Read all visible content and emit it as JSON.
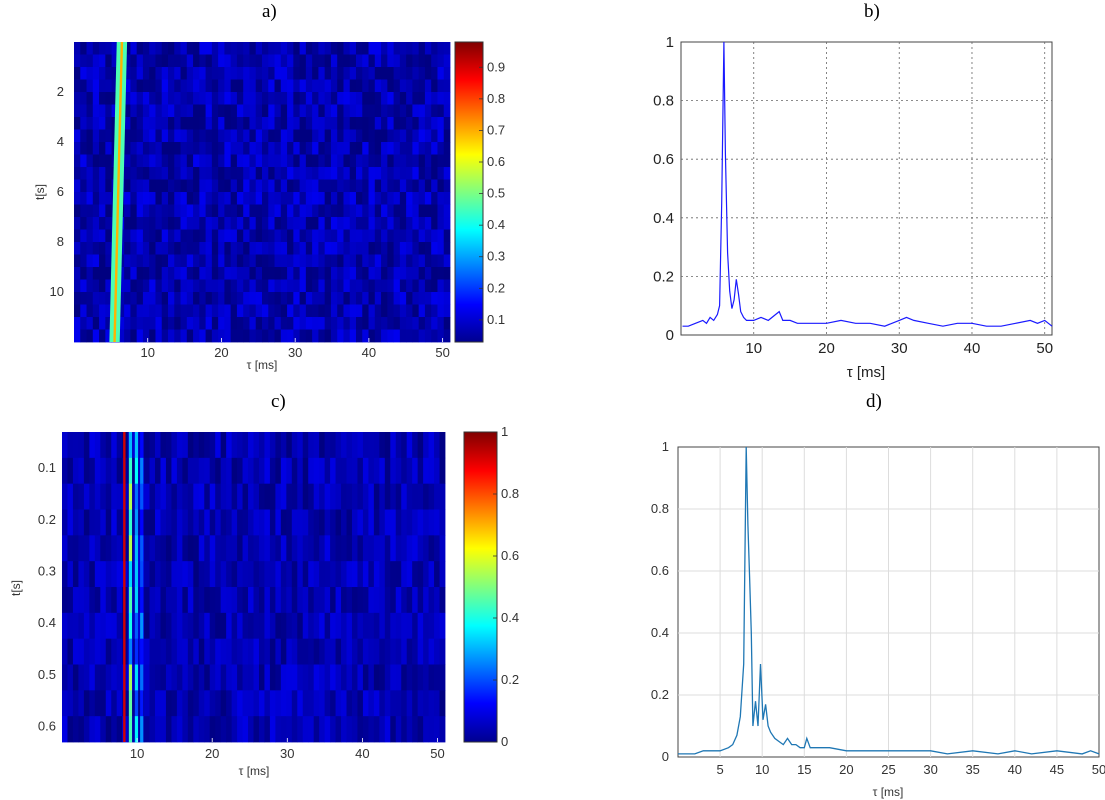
{
  "panels": {
    "a": {
      "label": "a)"
    },
    "b": {
      "label": "b)"
    },
    "c": {
      "label": "c)"
    },
    "d": {
      "label": "d)"
    }
  },
  "chart_data": [
    {
      "type": "heatmap",
      "panel": "a",
      "xlabel": "τ [ms]",
      "ylabel": "t[s]",
      "xlim": [
        0,
        51
      ],
      "ylim": [
        0,
        12
      ],
      "y_reversed": true,
      "x_ticks": [
        10,
        20,
        30,
        40,
        50
      ],
      "y_ticks": [
        2,
        4,
        6,
        8,
        10
      ],
      "colorbar_ticks": [
        0.1,
        0.2,
        0.3,
        0.4,
        0.5,
        0.6,
        0.7,
        0.8,
        0.9
      ],
      "colorbar_range": [
        0.03,
        0.98
      ],
      "colormap": "jet",
      "peak_tau_ms": {
        "at_t0": 6.5,
        "at_tmax": 5.5
      },
      "background_level": 0.05
    },
    {
      "type": "line",
      "panel": "b",
      "xlabel": "τ [ms]",
      "ylabel": "",
      "xlim": [
        0,
        51
      ],
      "ylim": [
        0,
        1
      ],
      "x_ticks": [
        10,
        20,
        30,
        40,
        50
      ],
      "y_ticks": [
        0,
        0.2,
        0.4,
        0.6,
        0.8,
        1
      ],
      "grid": "dotted",
      "color": "#1a1aff",
      "x": [
        0.2,
        1,
        2,
        3,
        3.5,
        4,
        4.5,
        5,
        5.3,
        5.6,
        5.9,
        6.1,
        6.4,
        6.7,
        7,
        7.3,
        7.6,
        7.9,
        8.2,
        8.6,
        9,
        10,
        11,
        12,
        13,
        13.5,
        14,
        15,
        16,
        18,
        20,
        22,
        24,
        26,
        28,
        30,
        31,
        32,
        34,
        36,
        38,
        40,
        42,
        44,
        46,
        48,
        49,
        50,
        51
      ],
      "y": [
        0.03,
        0.03,
        0.04,
        0.05,
        0.04,
        0.06,
        0.05,
        0.07,
        0.1,
        0.45,
        1.0,
        0.62,
        0.28,
        0.15,
        0.09,
        0.12,
        0.19,
        0.14,
        0.08,
        0.06,
        0.05,
        0.05,
        0.06,
        0.05,
        0.07,
        0.08,
        0.05,
        0.05,
        0.04,
        0.04,
        0.04,
        0.05,
        0.04,
        0.04,
        0.03,
        0.05,
        0.06,
        0.05,
        0.04,
        0.03,
        0.04,
        0.04,
        0.03,
        0.03,
        0.04,
        0.05,
        0.04,
        0.05,
        0.03
      ]
    },
    {
      "type": "heatmap",
      "panel": "c",
      "xlabel": "τ [ms]",
      "ylabel": "t[s]",
      "xlim": [
        0,
        51
      ],
      "ylim": [
        0.03,
        0.63
      ],
      "y_reversed": true,
      "x_ticks": [
        10,
        20,
        30,
        40,
        50
      ],
      "y_ticks": [
        0.1,
        0.2,
        0.3,
        0.4,
        0.5,
        0.6
      ],
      "colorbar_ticks": [
        0,
        0.2,
        0.4,
        0.6,
        0.8,
        1
      ],
      "colorbar_range": [
        0,
        1
      ],
      "colormap": "jet",
      "peak_tau_ms": 8.3,
      "background_level": 0.05
    },
    {
      "type": "line",
      "panel": "d",
      "xlabel": "τ [ms]",
      "ylabel": "",
      "xlim": [
        0,
        50
      ],
      "ylim": [
        0,
        1
      ],
      "x_ticks": [
        5,
        10,
        15,
        20,
        25,
        30,
        35,
        40,
        45,
        50
      ],
      "y_ticks": [
        0,
        0.2,
        0.4,
        0.6,
        0.8,
        1
      ],
      "grid": "solid",
      "color": "#1f77b4",
      "x": [
        0,
        1,
        2,
        3,
        4,
        5,
        6,
        6.5,
        7,
        7.4,
        7.8,
        8.1,
        8.3,
        8.5,
        8.7,
        8.9,
        9.2,
        9.5,
        9.8,
        10.1,
        10.4,
        10.7,
        11,
        11.5,
        12,
        12.5,
        13,
        13.5,
        14,
        14.5,
        15,
        15.3,
        15.7,
        16.5,
        18,
        20,
        22,
        25,
        28,
        30,
        32,
        35,
        38,
        40,
        42,
        45,
        48,
        49,
        50
      ],
      "y": [
        0.01,
        0.01,
        0.01,
        0.02,
        0.02,
        0.02,
        0.03,
        0.04,
        0.07,
        0.13,
        0.3,
        1.0,
        0.75,
        0.58,
        0.4,
        0.1,
        0.18,
        0.1,
        0.3,
        0.12,
        0.17,
        0.1,
        0.08,
        0.06,
        0.05,
        0.04,
        0.06,
        0.04,
        0.04,
        0.03,
        0.03,
        0.06,
        0.03,
        0.03,
        0.03,
        0.02,
        0.02,
        0.02,
        0.02,
        0.02,
        0.01,
        0.02,
        0.01,
        0.02,
        0.01,
        0.02,
        0.01,
        0.02,
        0.01
      ]
    }
  ]
}
